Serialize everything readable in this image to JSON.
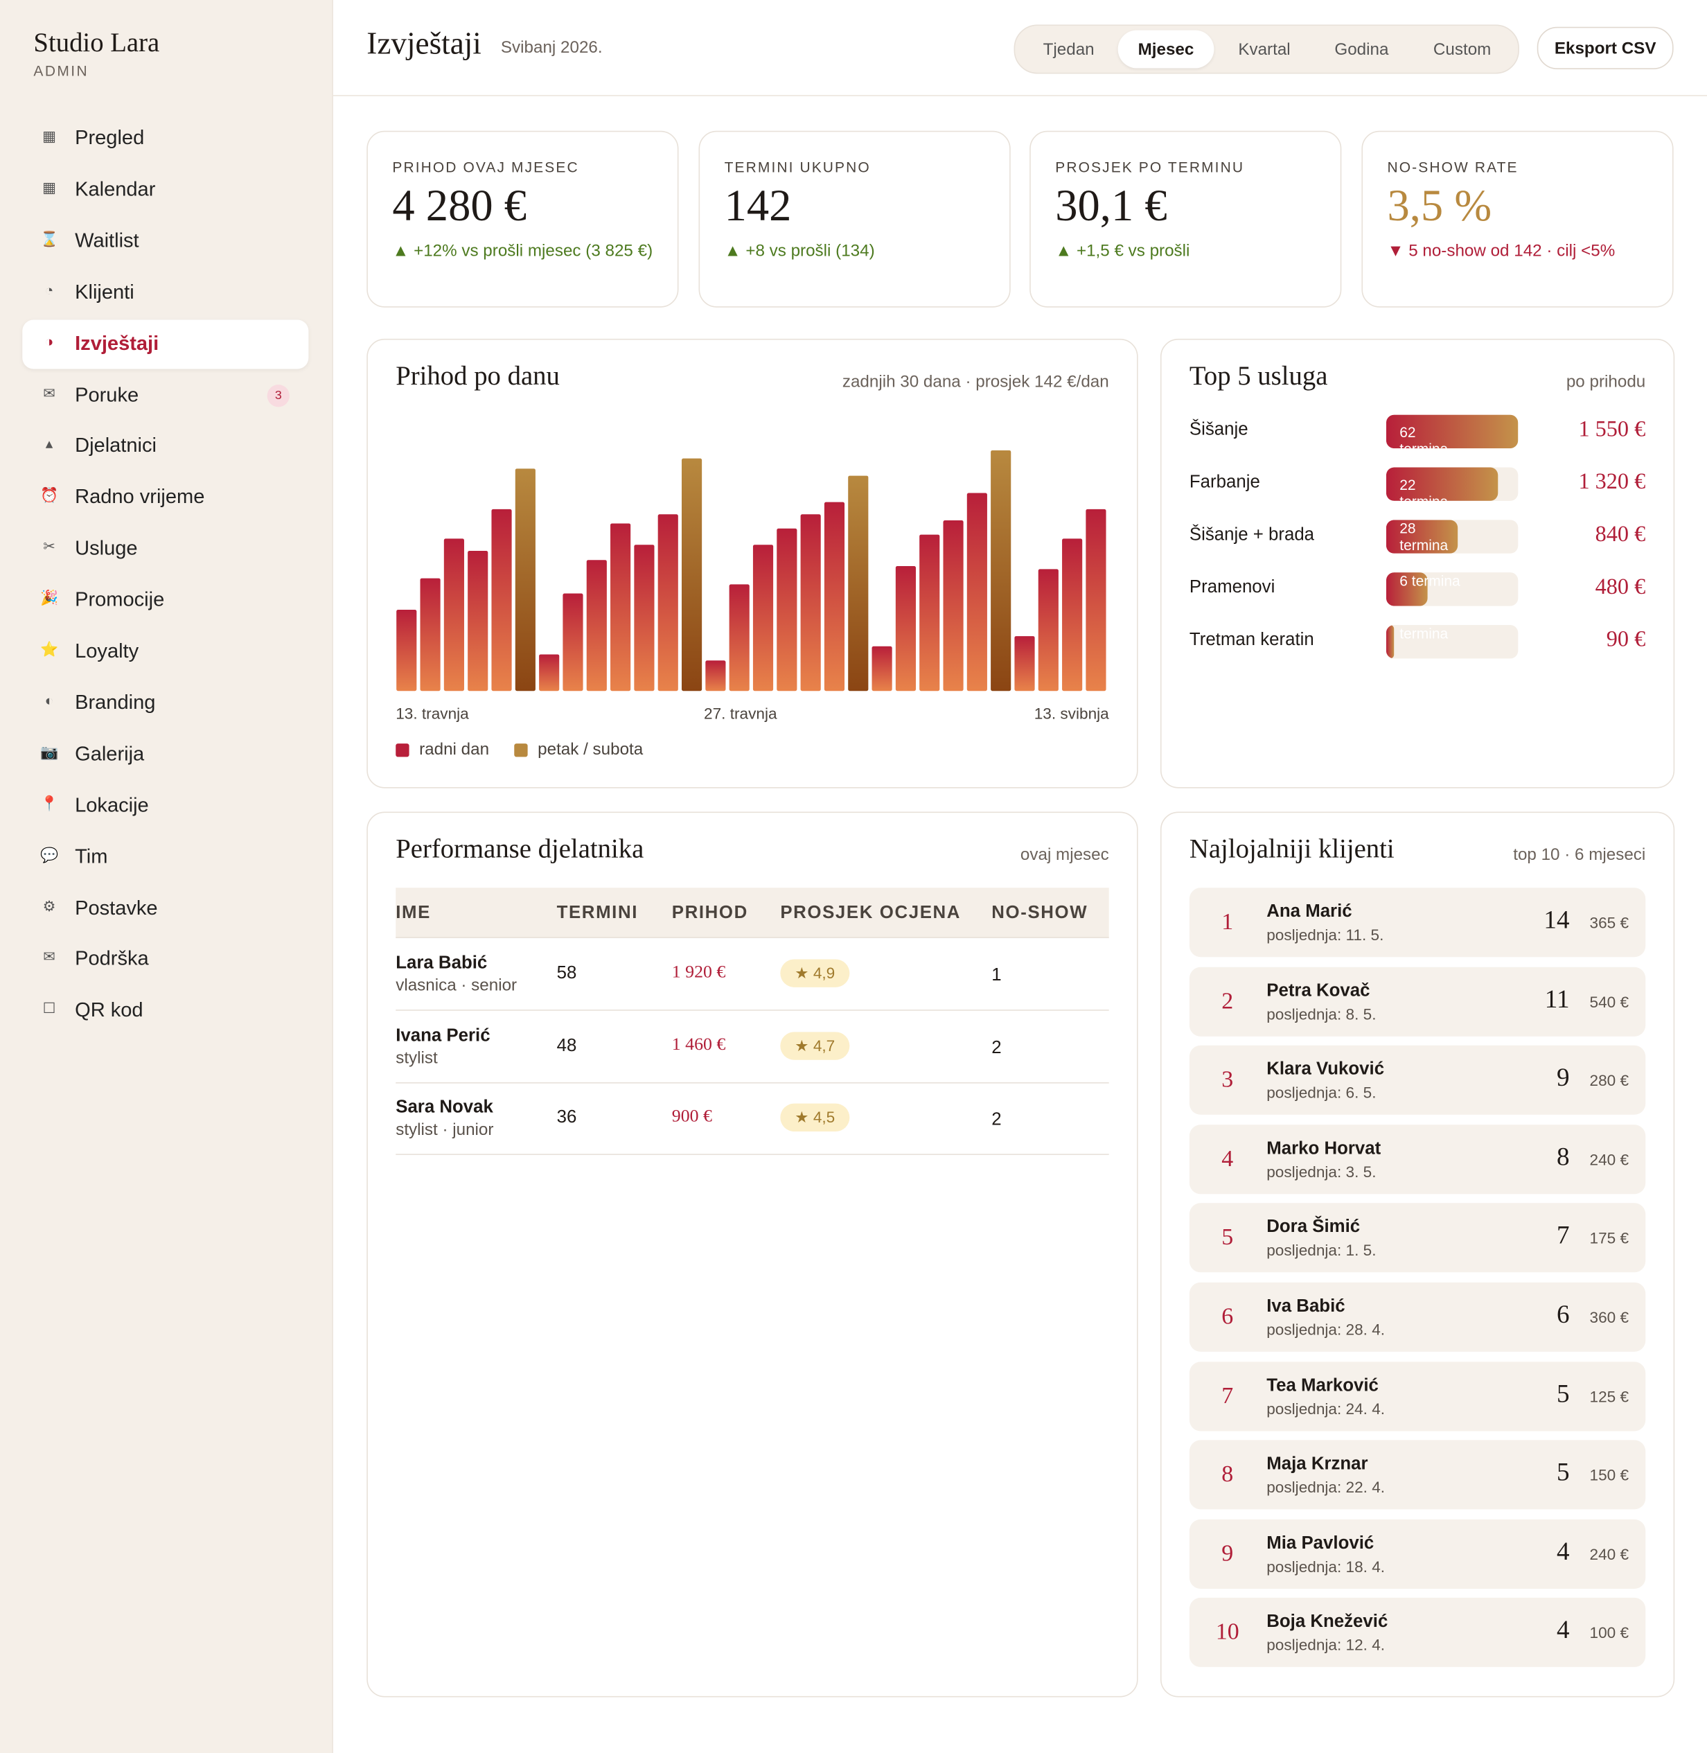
{
  "sidebar": {
    "brand": "Studio Lara",
    "role": "ADMIN",
    "active_index": 4,
    "nav": [
      {
        "icon": "▦",
        "label": "Pregled"
      },
      {
        "icon": "▦",
        "label": "Kalendar"
      },
      {
        "icon": "⌛",
        "label": "Waitlist"
      },
      {
        "icon": "◔",
        "label": "Klijenti"
      },
      {
        "icon": "◑",
        "label": "Izvještaji"
      },
      {
        "icon": "✉",
        "label": "Poruke",
        "badge": "3"
      },
      {
        "icon": "▴",
        "label": "Djelatnici"
      },
      {
        "icon": "⏰",
        "label": "Radno vrijeme"
      },
      {
        "icon": "✂",
        "label": "Usluge"
      },
      {
        "icon": "🎉",
        "label": "Promocije"
      },
      {
        "icon": "⭐",
        "label": "Loyalty"
      },
      {
        "icon": "◐",
        "label": "Branding"
      },
      {
        "icon": "📷",
        "label": "Galerija"
      },
      {
        "icon": "📍",
        "label": "Lokacije"
      },
      {
        "icon": "💬",
        "label": "Tim"
      },
      {
        "icon": "⚙",
        "label": "Postavke"
      },
      {
        "icon": "✉",
        "label": "Podrška"
      },
      {
        "icon": "☐",
        "label": "QR kod"
      }
    ]
  },
  "header": {
    "title": "Izvještaji",
    "period": "Svibanj 2026.",
    "tabs": [
      "Tjedan",
      "Mjesec",
      "Kvartal",
      "Godina",
      "Custom"
    ],
    "active_tab": 1,
    "export": "Eksport CSV"
  },
  "kpis": [
    {
      "label": "PRIHOD OVAJ MJESEC",
      "value": "4 280 €",
      "delta": "▲ +12% vs prošli mjesec (3 825 €)",
      "delta_color": "#4d7a1f",
      "value_color": "#1f1a17"
    },
    {
      "label": "TERMINI UKUPNO",
      "value": "142",
      "delta": "▲ +8 vs prošli (134)",
      "delta_color": "#4d7a1f",
      "value_color": "#1f1a17"
    },
    {
      "label": "PROSJEK PO TERMINU",
      "value": "30,1 €",
      "delta": "▲ +1,5 € vs prošli",
      "delta_color": "#4d7a1f",
      "value_color": "#1f1a17"
    },
    {
      "label": "NO-SHOW RATE",
      "value": "3,5 %",
      "delta": "▼ 5 no-show od 142 · cilj <5%",
      "delta_color": "#b01e38",
      "value_color": "#b8893f"
    }
  ],
  "chart_data": {
    "type": "bar",
    "title": "Prihod po danu",
    "subtitle": "zadnjih 30 dana · prosjek 142 €/dan",
    "categories": [
      "13. travnja",
      null,
      null,
      null,
      null,
      null,
      null,
      null,
      null,
      null,
      null,
      null,
      null,
      null,
      "27. travnja",
      null,
      null,
      null,
      null,
      null,
      null,
      null,
      null,
      null,
      null,
      null,
      null,
      null,
      null,
      "13. svibnja"
    ],
    "series": [
      {
        "name": "radni dan",
        "color": "#b81f3a",
        "color_bottom": "#e8834a",
        "values": [
          80,
          111,
          150,
          138,
          179,
          null,
          36,
          96,
          129,
          165,
          144,
          174,
          null,
          30,
          105,
          144,
          160,
          174,
          186,
          null,
          44,
          123,
          154,
          168,
          195,
          null,
          54,
          120,
          150,
          179
        ]
      },
      {
        "name": "petak / subota",
        "color": "#b8893f",
        "color_bottom": "#8b4513",
        "values": [
          null,
          null,
          null,
          null,
          null,
          219,
          null,
          null,
          null,
          null,
          null,
          null,
          229,
          null,
          null,
          null,
          null,
          null,
          null,
          212,
          null,
          null,
          null,
          null,
          null,
          237,
          null,
          null,
          null,
          null
        ]
      }
    ],
    "ylim": [
      0,
      272
    ]
  },
  "services": {
    "title": "Top 5 usluga",
    "subtitle": "po prihodu",
    "categories": [
      "Šišanje",
      "Farbanje",
      "Šišanje + brada",
      "Pramenovi",
      "Tretman keratin"
    ],
    "bar_labels": [
      "62 termina",
      "22 termina",
      "28 termina",
      "6 termina",
      "termina"
    ],
    "values": [
      1550,
      1320,
      840,
      480,
      90
    ],
    "value_labels": [
      "1 550 €",
      "1 320 €",
      "840 €",
      "480 €",
      "90 €"
    ],
    "xlim": [
      0,
      1550
    ]
  },
  "staff": {
    "title": "Performanse djelatnika",
    "subtitle": "ovaj mjesec",
    "columns": [
      "IME",
      "TERMINI",
      "PRIHOD",
      "PROSJEK OCJENA",
      "NO-SHOW"
    ],
    "rows": [
      {
        "name": "Lara Babić",
        "role": "vlasnica · senior",
        "appointments": 58,
        "revenue": "1 920 €",
        "rating": "★ 4,9",
        "no_show": 1
      },
      {
        "name": "Ivana Perić",
        "role": "stylist",
        "appointments": 48,
        "revenue": "1 460 €",
        "rating": "★ 4,7",
        "no_show": 2
      },
      {
        "name": "Sara Novak",
        "role": "stylist · junior",
        "appointments": 36,
        "revenue": "900 €",
        "rating": "★ 4,5",
        "no_show": 2
      }
    ]
  },
  "clients": {
    "title": "Najlojalniji klijenti",
    "subtitle": "top 10 · 6 mjeseci",
    "rows": [
      {
        "rank": 1,
        "name": "Ana Marić",
        "last": "posljednja: 11. 5.",
        "visits": 14,
        "amount": "365 €"
      },
      {
        "rank": 2,
        "name": "Petra Kovač",
        "last": "posljednja: 8. 5.",
        "visits": 11,
        "amount": "540 €"
      },
      {
        "rank": 3,
        "name": "Klara Vuković",
        "last": "posljednja: 6. 5.",
        "visits": 9,
        "amount": "280 €"
      },
      {
        "rank": 4,
        "name": "Marko Horvat",
        "last": "posljednja: 3. 5.",
        "visits": 8,
        "amount": "240 €"
      },
      {
        "rank": 5,
        "name": "Dora Šimić",
        "last": "posljednja: 1. 5.",
        "visits": 7,
        "amount": "175 €"
      },
      {
        "rank": 6,
        "name": "Iva Babić",
        "last": "posljednja: 28. 4.",
        "visits": 6,
        "amount": "360 €"
      },
      {
        "rank": 7,
        "name": "Tea Marković",
        "last": "posljednja: 24. 4.",
        "visits": 5,
        "amount": "125 €"
      },
      {
        "rank": 8,
        "name": "Maja Krznar",
        "last": "posljednja: 22. 4.",
        "visits": 5,
        "amount": "150 €"
      },
      {
        "rank": 9,
        "name": "Mia Pavlović",
        "last": "posljednja: 18. 4.",
        "visits": 4,
        "amount": "240 €"
      },
      {
        "rank": 10,
        "name": "Boja Knežević",
        "last": "posljednja: 12. 4.",
        "visits": 4,
        "amount": "100 €"
      }
    ]
  }
}
